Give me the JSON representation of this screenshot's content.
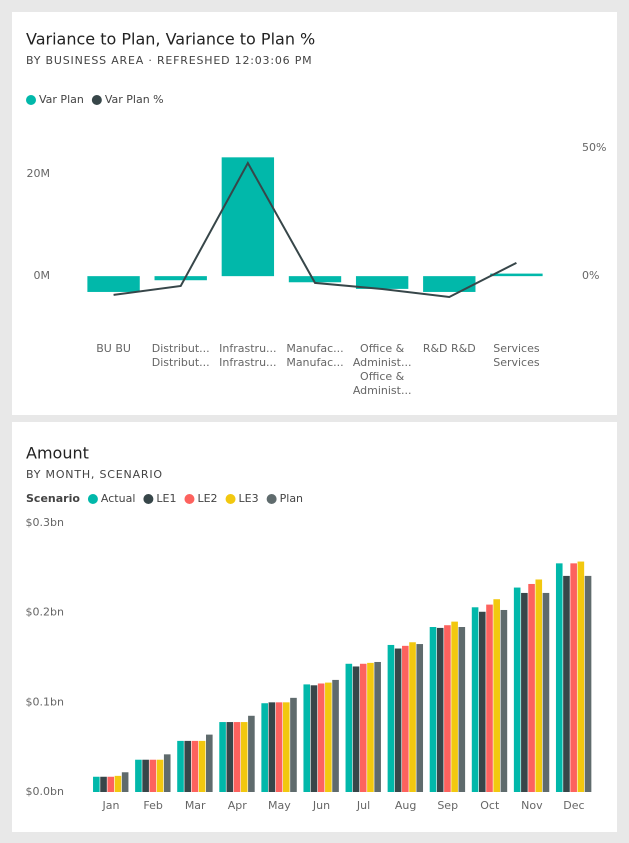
{
  "chart_data": [
    {
      "type": "combo",
      "title": "Variance to Plan, Variance to Plan %",
      "subtitle": "BY BUSINESS AREA  ·  REFRESHED 12:03:06 PM",
      "categories": [
        [
          "BU BU"
        ],
        [
          "Distribut...",
          "Distribut..."
        ],
        [
          "Infrastru...",
          "Infrastru..."
        ],
        [
          "Manufac...",
          "Manufac..."
        ],
        [
          "Office &",
          "Administ...",
          "Office &",
          "Administ..."
        ],
        [
          "R&D R&D"
        ],
        [
          "Services",
          "Services"
        ]
      ],
      "series": [
        {
          "name": "Var Plan",
          "type": "bar",
          "color": "#01B8AA",
          "values": [
            -3100000,
            -800000,
            23300000,
            -1200000,
            -2500000,
            -3100000,
            500000
          ]
        },
        {
          "name": "Var Plan %",
          "type": "line",
          "axis": "y2",
          "color": "#374649",
          "values": [
            -7.4,
            -3.9,
            44.1,
            -2.7,
            -5.1,
            -8.2,
            5.1
          ]
        }
      ],
      "ylim": [
        -8600000,
        26700000
      ],
      "yticks": [
        {
          "value": 0,
          "label": "0M"
        },
        {
          "value": 20000000,
          "label": "20M"
        }
      ],
      "y2lim": [
        -17.2,
        53.1
      ],
      "y2ticks": [
        {
          "value": 0,
          "label": "0%"
        },
        {
          "value": 50,
          "label": "50%"
        }
      ],
      "legend": "top-left"
    },
    {
      "type": "grouped-bar",
      "title": "Amount",
      "subtitle": "BY MONTH, SCENARIO",
      "legend_title": "Scenario",
      "categories": [
        "Jan",
        "Feb",
        "Mar",
        "Apr",
        "May",
        "Jun",
        "Jul",
        "Aug",
        "Sep",
        "Oct",
        "Nov",
        "Dec"
      ],
      "series": [
        {
          "name": "Actual",
          "color": "#01B8AA",
          "values": [
            0.017,
            0.036,
            0.057,
            0.078,
            0.099,
            0.12,
            0.143,
            0.164,
            0.184,
            0.206,
            0.228,
            0.255
          ]
        },
        {
          "name": "LE1",
          "color": "#374649",
          "values": [
            0.017,
            0.036,
            0.057,
            0.078,
            0.1,
            0.119,
            0.14,
            0.16,
            0.183,
            0.201,
            0.222,
            0.241
          ]
        },
        {
          "name": "LE2",
          "color": "#FD625E",
          "values": [
            0.017,
            0.036,
            0.057,
            0.078,
            0.1,
            0.121,
            0.143,
            0.163,
            0.186,
            0.209,
            0.232,
            0.255
          ]
        },
        {
          "name": "LE3",
          "color": "#F2C80F",
          "values": [
            0.018,
            0.036,
            0.057,
            0.078,
            0.1,
            0.122,
            0.144,
            0.167,
            0.19,
            0.215,
            0.237,
            0.257
          ]
        },
        {
          "name": "Plan",
          "color": "#5F6B6D",
          "values": [
            0.022,
            0.042,
            0.064,
            0.085,
            0.105,
            0.125,
            0.145,
            0.165,
            0.184,
            0.203,
            0.222,
            0.241
          ]
        }
      ],
      "ylim": [
        0,
        0.3
      ],
      "yticks": [
        {
          "value": 0,
          "label": "$0.0bn"
        },
        {
          "value": 0.1,
          "label": "$0.1bn"
        },
        {
          "value": 0.2,
          "label": "$0.2bn"
        },
        {
          "value": 0.3,
          "label": "$0.3bn"
        }
      ],
      "legend": "top-left"
    }
  ]
}
